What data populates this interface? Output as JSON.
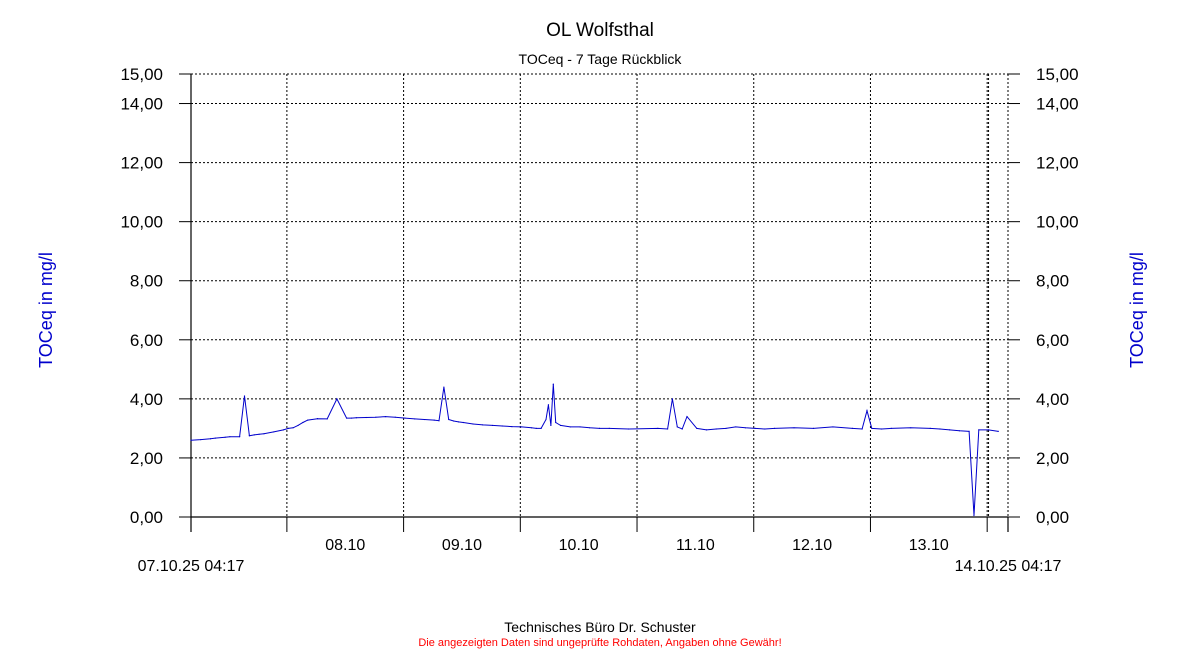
{
  "chart_data": {
    "type": "line",
    "title": "OL Wolfsthal",
    "subtitle": "TOCeq - 7 Tage Rückblick",
    "ylabel_left": "TOCeq in mg/l",
    "ylabel_right": "TOCeq in mg/l",
    "y_ticks": [
      "0,00",
      "2,00",
      "4,00",
      "6,00",
      "8,00",
      "10,00",
      "12,00",
      "14,00",
      "15,00"
    ],
    "y_tick_values": [
      0,
      2,
      4,
      6,
      8,
      10,
      12,
      14,
      15
    ],
    "ylim": [
      0,
      15
    ],
    "x_start_label": "07.10.25 04:17",
    "x_end_label": "14.10.25 04:17",
    "x_day_labels": [
      "08.10",
      "09.10",
      "10.10",
      "11.10",
      "12.10",
      "13.10"
    ],
    "x_range_hours": [
      0,
      168
    ],
    "grid": true,
    "series_color": "#0000cc",
    "series": [
      {
        "x_hours": [
          0,
          2,
          4,
          5,
          7,
          8,
          10,
          11,
          12,
          13,
          14,
          15,
          17,
          19,
          20,
          21,
          22,
          23,
          24,
          26,
          28,
          30,
          32,
          33,
          34,
          36,
          38,
          40,
          42,
          44,
          46,
          48,
          50,
          51,
          52,
          53,
          54,
          55,
          56,
          58,
          60,
          62,
          64,
          66,
          68,
          70,
          71,
          72,
          73,
          73.5,
          74,
          74.5,
          75,
          76,
          78,
          80,
          82,
          84,
          86,
          90,
          96,
          98,
          99,
          100,
          101,
          102,
          104,
          106,
          108,
          110,
          112,
          114,
          116,
          118,
          120,
          124,
          128,
          132,
          136,
          138,
          139,
          140,
          142,
          144,
          148,
          152,
          154,
          156,
          158,
          160,
          161,
          162,
          164,
          166
        ],
        "values": [
          2.6,
          2.62,
          2.65,
          2.67,
          2.7,
          2.72,
          2.72,
          4.1,
          2.75,
          2.78,
          2.8,
          2.82,
          2.88,
          2.95,
          3.0,
          3.02,
          3.1,
          3.2,
          3.28,
          3.33,
          3.32,
          4.0,
          3.35,
          3.35,
          3.36,
          3.37,
          3.38,
          3.4,
          3.38,
          3.35,
          3.32,
          3.3,
          3.28,
          3.26,
          4.4,
          3.3,
          3.25,
          3.22,
          3.2,
          3.15,
          3.12,
          3.1,
          3.08,
          3.06,
          3.05,
          3.02,
          3.0,
          3.0,
          3.3,
          3.8,
          3.1,
          4.5,
          3.2,
          3.1,
          3.05,
          3.05,
          3.02,
          3.0,
          3.0,
          2.98,
          3.0,
          2.98,
          4.0,
          3.05,
          2.98,
          3.4,
          3.0,
          2.95,
          2.98,
          3.0,
          3.05,
          3.02,
          3.0,
          2.98,
          3.0,
          3.02,
          3.0,
          3.05,
          3.0,
          2.98,
          3.6,
          3.0,
          2.98,
          3.0,
          3.02,
          3.0,
          2.98,
          2.95,
          2.92,
          2.9,
          0.05,
          2.95,
          2.95,
          2.9
        ]
      }
    ]
  },
  "footer": {
    "line1": "Technisches Büro Dr. Schuster",
    "line2": "Die angezeigten Daten sind ungeprüfte Rohdaten, Angaben ohne Gewähr!"
  }
}
